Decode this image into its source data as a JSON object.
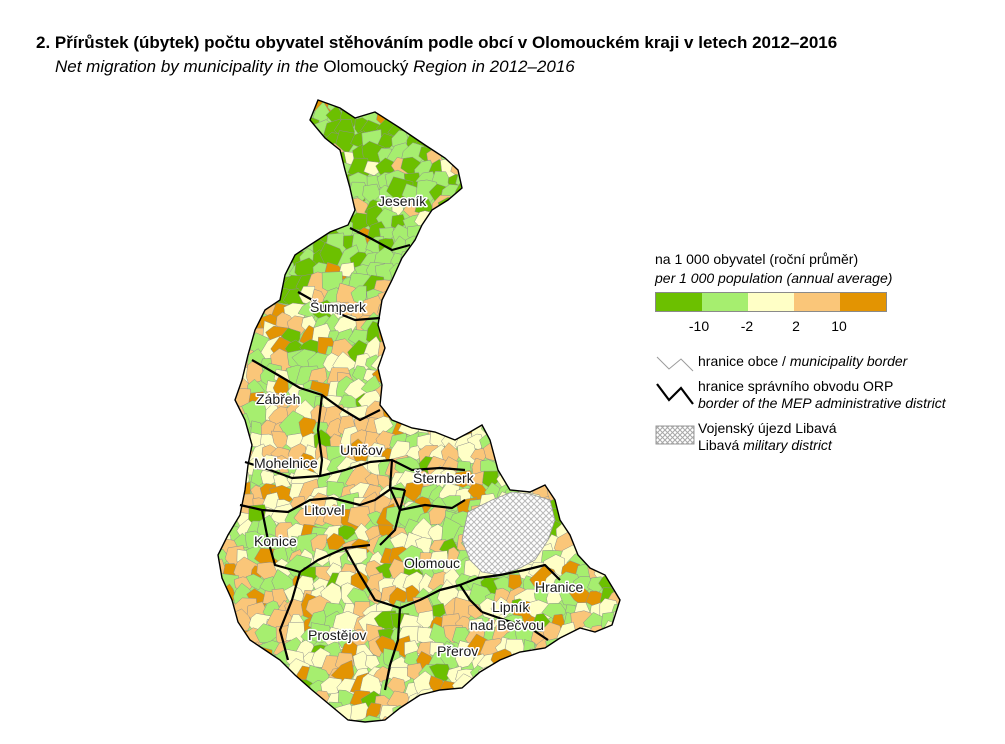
{
  "title": "2. Přírůstek (úbytek) počtu obyvatel stěhováním podle obcí v Olomouckém kraji v letech 2012–2016",
  "subtitle_italic_1": "Net migration by municipality in the",
  "subtitle_plain": " Olomoucký ",
  "subtitle_italic_2": "Region in 2012–2016",
  "cities": [
    "Jeseník",
    "Šumperk",
    "Zábřeh",
    "Uničov",
    "Mohelnice",
    "Šternberk",
    "Litovel",
    "Konice",
    "Olomouc",
    "Hranice",
    "Lipník",
    "nad Bečvou",
    "Prostějov",
    "Přerov"
  ],
  "legend": {
    "heading_cz": "na 1 000 obyvatel (roční průměr)",
    "heading_en": "per 1 000 population (annual average)",
    "classes": [
      {
        "range": "< -10",
        "color": "#6cc000"
      },
      {
        "range": "-10 – -2",
        "color": "#a6ee6f"
      },
      {
        "range": "-2 – 2",
        "color": "#ffffc6"
      },
      {
        "range": "2 – 10",
        "color": "#fac679"
      },
      {
        "range": "> 10",
        "color": "#e39402"
      }
    ],
    "tick_labels": [
      "-10",
      "-2",
      "2",
      "10"
    ],
    "municipality_border_cz": "hranice obce / ",
    "municipality_border_en": "municipality border",
    "orp_border_cz": "hranice správního obvodu ORP",
    "orp_border_en": "border of the MEP administrative district",
    "military_cz": "Vojenský újezd Libavá",
    "military_en_plain": "Libavá ",
    "military_en_italic": "military district"
  }
}
